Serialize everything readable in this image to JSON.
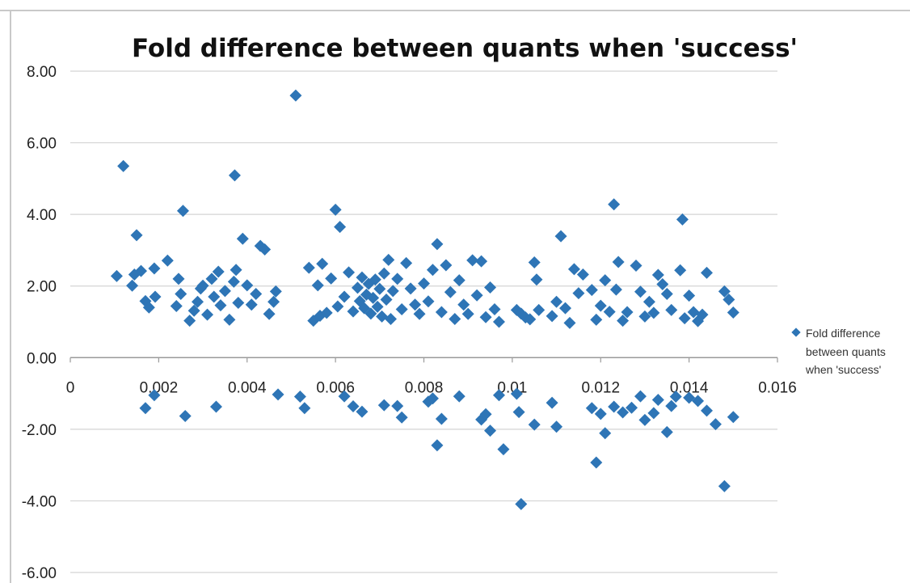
{
  "chart_data": {
    "type": "scatter",
    "title": "Fold difference between quants when 'success'",
    "xlabel": "",
    "ylabel": "",
    "xlim": [
      0,
      0.016
    ],
    "ylim": [
      -6,
      8
    ],
    "y_ticks": [
      "8.00",
      "6.00",
      "4.00",
      "2.00",
      "0.00",
      "-2.00",
      "-4.00",
      "-6.00"
    ],
    "x_ticks": [
      "0",
      "0.002",
      "0.004",
      "0.006",
      "0.008",
      "0.01",
      "0.012",
      "0.014",
      "0.016"
    ],
    "x_tick_values": [
      0,
      0.002,
      0.004,
      0.006,
      0.008,
      0.01,
      0.012,
      0.014,
      0.016
    ],
    "y_tick_values": [
      8,
      6,
      4,
      2,
      0,
      -2,
      -4,
      -6
    ],
    "grid": "horizontal",
    "legend": {
      "placement": "right",
      "lines": [
        "Fold difference",
        "between quants",
        "when 'success'"
      ],
      "marker_color": "#2e75b6"
    },
    "marker_color": "#2e75b6",
    "series": [
      {
        "name": "Fold difference between quants when 'success'",
        "points": [
          [
            0.00105,
            2.28
          ],
          [
            0.0012,
            5.35
          ],
          [
            0.0014,
            2.01
          ],
          [
            0.00145,
            2.32
          ],
          [
            0.0015,
            3.42
          ],
          [
            0.0016,
            2.42
          ],
          [
            0.0017,
            1.58
          ],
          [
            0.00178,
            1.4
          ],
          [
            0.0019,
            2.49
          ],
          [
            0.00192,
            1.7
          ],
          [
            0.0022,
            2.71
          ],
          [
            0.0024,
            1.44
          ],
          [
            0.00245,
            2.2
          ],
          [
            0.0025,
            1.78
          ],
          [
            0.00255,
            4.1
          ],
          [
            0.0027,
            1.03
          ],
          [
            0.0028,
            1.31
          ],
          [
            0.00288,
            1.56
          ],
          [
            0.00295,
            1.93
          ],
          [
            0.003,
            2.01
          ],
          [
            0.0031,
            1.2
          ],
          [
            0.0032,
            2.2
          ],
          [
            0.00325,
            1.7
          ],
          [
            0.00335,
            2.4
          ],
          [
            0.0034,
            1.46
          ],
          [
            0.0035,
            1.86
          ],
          [
            0.0036,
            1.06
          ],
          [
            0.0037,
            2.12
          ],
          [
            0.00372,
            5.09
          ],
          [
            0.00375,
            2.45
          ],
          [
            0.0038,
            1.53
          ],
          [
            0.0039,
            3.32
          ],
          [
            0.004,
            2.02
          ],
          [
            0.0041,
            1.48
          ],
          [
            0.0042,
            1.78
          ],
          [
            0.0043,
            3.12
          ],
          [
            0.0044,
            3.02
          ],
          [
            0.0045,
            1.22
          ],
          [
            0.0046,
            1.56
          ],
          [
            0.00465,
            1.85
          ],
          [
            0.0051,
            7.32
          ],
          [
            0.0054,
            2.51
          ],
          [
            0.0055,
            1.03
          ],
          [
            0.0056,
            2.02
          ],
          [
            0.00565,
            1.17
          ],
          [
            0.0057,
            2.62
          ],
          [
            0.0058,
            1.25
          ],
          [
            0.0059,
            2.21
          ],
          [
            0.006,
            4.13
          ],
          [
            0.00605,
            1.43
          ],
          [
            0.0061,
            3.65
          ],
          [
            0.0062,
            1.7
          ],
          [
            0.0063,
            2.38
          ],
          [
            0.0064,
            1.29
          ],
          [
            0.0065,
            1.95
          ],
          [
            0.00655,
            1.58
          ],
          [
            0.0066,
            2.24
          ],
          [
            0.00665,
            1.38
          ],
          [
            0.0067,
            1.76
          ],
          [
            0.00675,
            2.06
          ],
          [
            0.0068,
            1.23
          ],
          [
            0.00685,
            1.67
          ],
          [
            0.0069,
            2.18
          ],
          [
            0.00695,
            1.42
          ],
          [
            0.007,
            1.92
          ],
          [
            0.00705,
            1.15
          ],
          [
            0.0071,
            2.35
          ],
          [
            0.00715,
            1.62
          ],
          [
            0.0072,
            2.73
          ],
          [
            0.00725,
            1.08
          ],
          [
            0.0073,
            1.86
          ],
          [
            0.0074,
            2.2
          ],
          [
            0.0075,
            1.35
          ],
          [
            0.0076,
            2.64
          ],
          [
            0.0077,
            1.93
          ],
          [
            0.0078,
            1.48
          ],
          [
            0.0079,
            1.22
          ],
          [
            0.008,
            2.07
          ],
          [
            0.0081,
            1.57
          ],
          [
            0.0082,
            2.45
          ],
          [
            0.0083,
            3.17
          ],
          [
            0.0084,
            1.27
          ],
          [
            0.0085,
            2.58
          ],
          [
            0.0086,
            1.83
          ],
          [
            0.0087,
            1.08
          ],
          [
            0.0088,
            2.16
          ],
          [
            0.0089,
            1.48
          ],
          [
            0.009,
            1.22
          ],
          [
            0.0091,
            2.72
          ],
          [
            0.0092,
            1.74
          ],
          [
            0.0093,
            2.69
          ],
          [
            0.0094,
            1.13
          ],
          [
            0.0095,
            1.96
          ],
          [
            0.0096,
            1.35
          ],
          [
            0.0097,
            1.0
          ],
          [
            0.0101,
            1.33
          ],
          [
            0.0102,
            1.23
          ],
          [
            0.0103,
            1.12
          ],
          [
            0.0104,
            1.07
          ],
          [
            0.0105,
            2.66
          ],
          [
            0.01055,
            2.18
          ],
          [
            0.0106,
            1.33
          ],
          [
            0.0109,
            1.16
          ],
          [
            0.011,
            1.56
          ],
          [
            0.0111,
            3.39
          ],
          [
            0.0112,
            1.38
          ],
          [
            0.0113,
            0.97
          ],
          [
            0.0114,
            2.47
          ],
          [
            0.0115,
            1.8
          ],
          [
            0.0116,
            2.32
          ],
          [
            0.0118,
            1.89
          ],
          [
            0.0119,
            1.06
          ],
          [
            0.012,
            1.45
          ],
          [
            0.0121,
            2.16
          ],
          [
            0.0122,
            1.28
          ],
          [
            0.0123,
            4.28
          ],
          [
            0.01235,
            1.9
          ],
          [
            0.0124,
            2.67
          ],
          [
            0.0125,
            1.03
          ],
          [
            0.0126,
            1.27
          ],
          [
            0.0128,
            2.57
          ],
          [
            0.0129,
            1.84
          ],
          [
            0.013,
            1.15
          ],
          [
            0.0131,
            1.56
          ],
          [
            0.0132,
            1.25
          ],
          [
            0.0133,
            2.31
          ],
          [
            0.0134,
            2.05
          ],
          [
            0.0135,
            1.78
          ],
          [
            0.0136,
            1.33
          ],
          [
            0.0138,
            2.44
          ],
          [
            0.01385,
            3.86
          ],
          [
            0.0139,
            1.1
          ],
          [
            0.014,
            1.73
          ],
          [
            0.0141,
            1.27
          ],
          [
            0.0142,
            1.02
          ],
          [
            0.0143,
            1.2
          ],
          [
            0.0144,
            2.37
          ],
          [
            0.0148,
            1.85
          ],
          [
            0.0149,
            1.62
          ],
          [
            0.015,
            1.26
          ],
          [
            0.0017,
            -1.41
          ],
          [
            0.0019,
            -1.05
          ],
          [
            0.0026,
            -1.63
          ],
          [
            0.0033,
            -1.37
          ],
          [
            0.0047,
            -1.03
          ],
          [
            0.0052,
            -1.09
          ],
          [
            0.0053,
            -1.41
          ],
          [
            0.0062,
            -1.08
          ],
          [
            0.0064,
            -1.36
          ],
          [
            0.0066,
            -1.51
          ],
          [
            0.0071,
            -1.33
          ],
          [
            0.0074,
            -1.35
          ],
          [
            0.0075,
            -1.67
          ],
          [
            0.0081,
            -1.23
          ],
          [
            0.0082,
            -1.14
          ],
          [
            0.0083,
            -2.45
          ],
          [
            0.0084,
            -1.71
          ],
          [
            0.0088,
            -1.08
          ],
          [
            0.0093,
            -1.73
          ],
          [
            0.0094,
            -1.58
          ],
          [
            0.0095,
            -2.04
          ],
          [
            0.0097,
            -1.05
          ],
          [
            0.0098,
            -2.56
          ],
          [
            0.0101,
            -1.01
          ],
          [
            0.01015,
            -1.52
          ],
          [
            0.0102,
            -4.09
          ],
          [
            0.0105,
            -1.87
          ],
          [
            0.0109,
            -1.26
          ],
          [
            0.011,
            -1.93
          ],
          [
            0.0118,
            -1.41
          ],
          [
            0.0119,
            -2.93
          ],
          [
            0.012,
            -1.57
          ],
          [
            0.0121,
            -2.11
          ],
          [
            0.0123,
            -1.37
          ],
          [
            0.0125,
            -1.53
          ],
          [
            0.0127,
            -1.4
          ],
          [
            0.0129,
            -1.08
          ],
          [
            0.013,
            -1.74
          ],
          [
            0.0132,
            -1.55
          ],
          [
            0.0133,
            -1.18
          ],
          [
            0.0135,
            -2.08
          ],
          [
            0.0136,
            -1.35
          ],
          [
            0.0137,
            -1.09
          ],
          [
            0.014,
            -1.12
          ],
          [
            0.0142,
            -1.21
          ],
          [
            0.0144,
            -1.48
          ],
          [
            0.0146,
            -1.86
          ],
          [
            0.0148,
            -3.59
          ],
          [
            0.015,
            -1.66
          ]
        ]
      }
    ]
  }
}
